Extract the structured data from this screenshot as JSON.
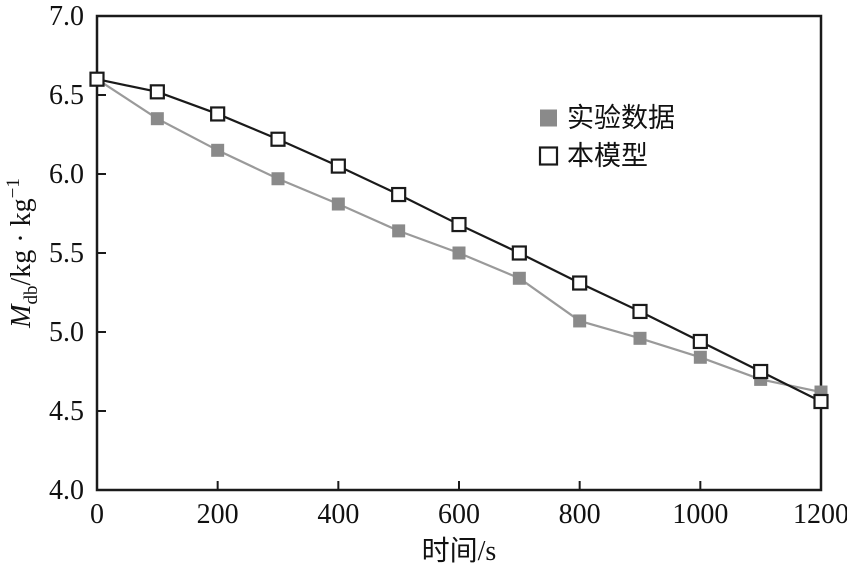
{
  "chart_data": {
    "type": "line",
    "title": "",
    "xlabel": "时间/s",
    "ylabel": "M_db/kg·kg⁻¹",
    "ylabel_parts": {
      "var": "M",
      "sub": "db",
      "rest": "/kg · kg",
      "sup": "−1"
    },
    "xlim": [
      0,
      1200
    ],
    "ylim": [
      4.0,
      7.0
    ],
    "x_ticks": [
      0,
      200,
      400,
      600,
      800,
      1000,
      1200
    ],
    "x_tick_labels": [
      "0",
      "200",
      "400",
      "600",
      "800",
      "1000",
      "1200"
    ],
    "y_ticks": [
      4.0,
      4.5,
      5.0,
      5.5,
      6.0,
      6.5,
      7.0
    ],
    "y_tick_labels": [
      "4.0",
      "4.5",
      "5.0",
      "5.5",
      "6.0",
      "6.5",
      "7.0"
    ],
    "grid": false,
    "frame": true,
    "legend_position": "inside-upper-right",
    "axis_color": "#1a1a1a",
    "x": [
      0,
      100,
      200,
      300,
      400,
      500,
      600,
      700,
      800,
      900,
      1000,
      1100,
      1200
    ],
    "series": [
      {
        "name": "实验数据",
        "marker": "filled-square",
        "marker_color": "#8a8a8a",
        "line_color": "#9a9a9a",
        "values": [
          6.6,
          6.35,
          6.15,
          5.97,
          5.81,
          5.64,
          5.5,
          5.34,
          5.07,
          4.96,
          4.84,
          4.7,
          4.62
        ]
      },
      {
        "name": "本模型",
        "marker": "open-square",
        "marker_color": "#ffffff",
        "line_color": "#1a1a1a",
        "values": [
          6.6,
          6.52,
          6.38,
          6.22,
          6.05,
          5.87,
          5.68,
          5.5,
          5.31,
          5.13,
          4.94,
          4.75,
          4.56
        ]
      }
    ]
  }
}
